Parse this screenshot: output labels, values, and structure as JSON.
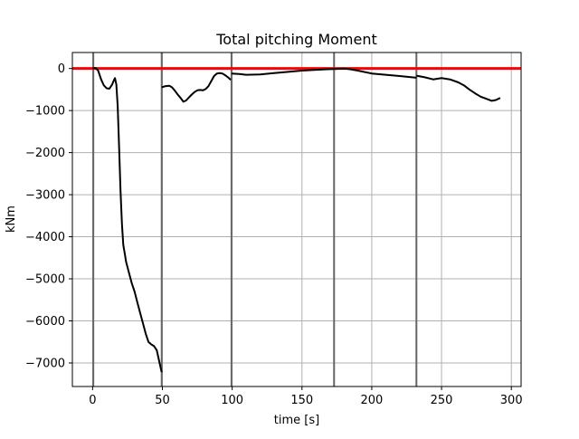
{
  "chart_data": {
    "type": "line",
    "title": "Total pitching Moment",
    "xlabel": "time [s]",
    "ylabel": "kNm",
    "xlim": [
      -14.5,
      307
    ],
    "ylim": [
      -7560,
      380
    ],
    "xticks": [
      0,
      50,
      100,
      150,
      200,
      250,
      300
    ],
    "xtick_labels": [
      "0",
      "50",
      "100",
      "150",
      "200",
      "250",
      "300"
    ],
    "yticks": [
      0,
      -1000,
      -2000,
      -3000,
      -4000,
      -5000,
      -6000,
      -7000
    ],
    "ytick_labels": [
      "0",
      "−1000",
      "−2000",
      "−3000",
      "−4000",
      "−5000",
      "−6000",
      "−7000"
    ],
    "grid": true,
    "vertical_markers": [
      0.5,
      49.5,
      99.5,
      173,
      232
    ],
    "reference_line": {
      "y": 0,
      "color": "#ff0000"
    },
    "series_color": "#000000",
    "segments": [
      {
        "x": [
          0,
          2,
          4,
          6,
          8,
          10,
          12,
          14,
          15,
          16,
          17,
          18,
          19,
          20,
          21,
          22,
          23,
          24,
          26,
          28,
          30,
          32,
          34,
          36,
          38,
          40,
          42,
          44,
          46,
          48,
          49.5
        ],
        "y": [
          0,
          15,
          -50,
          -250,
          -400,
          -470,
          -480,
          -380,
          -300,
          -230,
          -380,
          -900,
          -1900,
          -2900,
          -3700,
          -4200,
          -4400,
          -4600,
          -4850,
          -5100,
          -5300,
          -5550,
          -5800,
          -6050,
          -6300,
          -6500,
          -6560,
          -6600,
          -6700,
          -7000,
          -7220
        ]
      },
      {
        "x": [
          49.5,
          52,
          55,
          57,
          59,
          61,
          63,
          65,
          67,
          69,
          71,
          73,
          75,
          77,
          79,
          81,
          83,
          85,
          87,
          89,
          91,
          93,
          95,
          97,
          99
        ],
        "y": [
          -450,
          -420,
          -410,
          -450,
          -530,
          -620,
          -700,
          -790,
          -760,
          -690,
          -620,
          -560,
          -520,
          -510,
          -520,
          -490,
          -420,
          -300,
          -180,
          -120,
          -110,
          -120,
          -160,
          -210,
          -270
        ]
      },
      {
        "x": [
          99.5,
          105,
          110,
          120,
          130,
          140,
          150,
          160,
          170,
          175,
          180,
          185,
          190,
          200,
          210,
          220,
          232
        ],
        "y": [
          -120,
          -130,
          -150,
          -140,
          -110,
          -80,
          -50,
          -30,
          -15,
          -10,
          0,
          -20,
          -50,
          -120,
          -150,
          -180,
          -220
        ]
      },
      {
        "x": [
          232,
          238,
          244,
          250,
          256,
          262,
          266,
          270,
          274,
          278,
          282,
          286,
          289,
          292
        ],
        "y": [
          -170,
          -210,
          -260,
          -230,
          -260,
          -330,
          -400,
          -500,
          -590,
          -670,
          -720,
          -770,
          -750,
          -700
        ]
      }
    ]
  }
}
